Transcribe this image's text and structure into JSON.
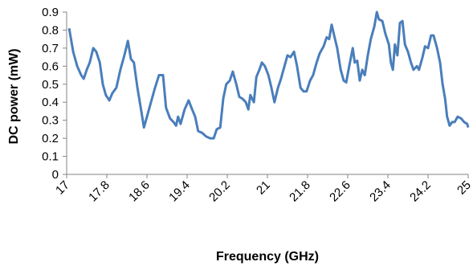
{
  "chart_data": {
    "type": "line",
    "x_label": "Frequency (GHz)",
    "y_label": "DC power (mW)",
    "xlim": [
      17,
      25
    ],
    "xticks": [
      17,
      17.8,
      18.6,
      19.4,
      20.2,
      21,
      21.8,
      22.6,
      23.4,
      24.2,
      25
    ],
    "ylim": [
      0,
      0.9
    ],
    "yticks": [
      0,
      0.1,
      0.2,
      0.3,
      0.4,
      0.5,
      0.6,
      0.7,
      0.8,
      0.9
    ],
    "grid": false,
    "series": [
      {
        "color": "#4a7ebb",
        "x": [
          17.05,
          17.13,
          17.21,
          17.29,
          17.34,
          17.4,
          17.46,
          17.53,
          17.59,
          17.66,
          17.72,
          17.78,
          17.85,
          17.91,
          17.99,
          18.07,
          18.15,
          18.22,
          18.28,
          18.34,
          18.41,
          18.47,
          18.54,
          18.6,
          18.68,
          18.76,
          18.84,
          18.92,
          18.98,
          19.06,
          19.13,
          19.18,
          19.22,
          19.27,
          19.35,
          19.43,
          19.5,
          19.56,
          19.62,
          19.7,
          19.78,
          19.86,
          19.93,
          19.99,
          20.06,
          20.12,
          20.18,
          20.25,
          20.31,
          20.38,
          20.44,
          20.5,
          20.57,
          20.62,
          20.66,
          20.73,
          20.78,
          20.84,
          20.89,
          20.95,
          21.02,
          21.08,
          21.14,
          21.21,
          21.27,
          21.34,
          21.4,
          21.46,
          21.53,
          21.59,
          21.66,
          21.72,
          21.78,
          21.85,
          21.91,
          21.98,
          22.04,
          22.12,
          22.18,
          22.23,
          22.28,
          22.33,
          22.39,
          22.46,
          22.52,
          22.57,
          22.63,
          22.7,
          22.74,
          22.79,
          22.84,
          22.89,
          22.94,
          23.0,
          23.06,
          23.13,
          23.18,
          23.22,
          23.29,
          23.35,
          23.42,
          23.46,
          23.5,
          23.54,
          23.59,
          23.64,
          23.69,
          23.74,
          23.8,
          23.86,
          23.91,
          23.98,
          24.02,
          24.09,
          24.14,
          24.2,
          24.26,
          24.31,
          24.38,
          24.44,
          24.49,
          24.54,
          24.58,
          24.63,
          24.68,
          24.73,
          24.79,
          24.86,
          24.92,
          24.98,
          25.0
        ],
        "values": [
          0.81,
          0.68,
          0.6,
          0.55,
          0.53,
          0.58,
          0.62,
          0.7,
          0.68,
          0.62,
          0.5,
          0.44,
          0.41,
          0.45,
          0.48,
          0.58,
          0.66,
          0.74,
          0.64,
          0.62,
          0.48,
          0.38,
          0.26,
          0.32,
          0.4,
          0.48,
          0.55,
          0.55,
          0.37,
          0.31,
          0.29,
          0.27,
          0.32,
          0.28,
          0.36,
          0.41,
          0.36,
          0.32,
          0.24,
          0.23,
          0.21,
          0.2,
          0.2,
          0.25,
          0.26,
          0.42,
          0.5,
          0.52,
          0.57,
          0.5,
          0.43,
          0.42,
          0.4,
          0.36,
          0.44,
          0.4,
          0.54,
          0.58,
          0.62,
          0.6,
          0.55,
          0.48,
          0.4,
          0.48,
          0.53,
          0.6,
          0.66,
          0.65,
          0.68,
          0.6,
          0.48,
          0.46,
          0.46,
          0.52,
          0.55,
          0.62,
          0.67,
          0.71,
          0.76,
          0.75,
          0.83,
          0.77,
          0.7,
          0.58,
          0.52,
          0.51,
          0.6,
          0.7,
          0.62,
          0.63,
          0.52,
          0.58,
          0.55,
          0.66,
          0.75,
          0.82,
          0.9,
          0.86,
          0.85,
          0.78,
          0.72,
          0.62,
          0.58,
          0.72,
          0.66,
          0.84,
          0.85,
          0.72,
          0.68,
          0.62,
          0.58,
          0.6,
          0.58,
          0.65,
          0.71,
          0.7,
          0.77,
          0.77,
          0.7,
          0.62,
          0.5,
          0.42,
          0.32,
          0.27,
          0.29,
          0.29,
          0.32,
          0.31,
          0.29,
          0.28,
          0.26
        ]
      }
    ]
  }
}
